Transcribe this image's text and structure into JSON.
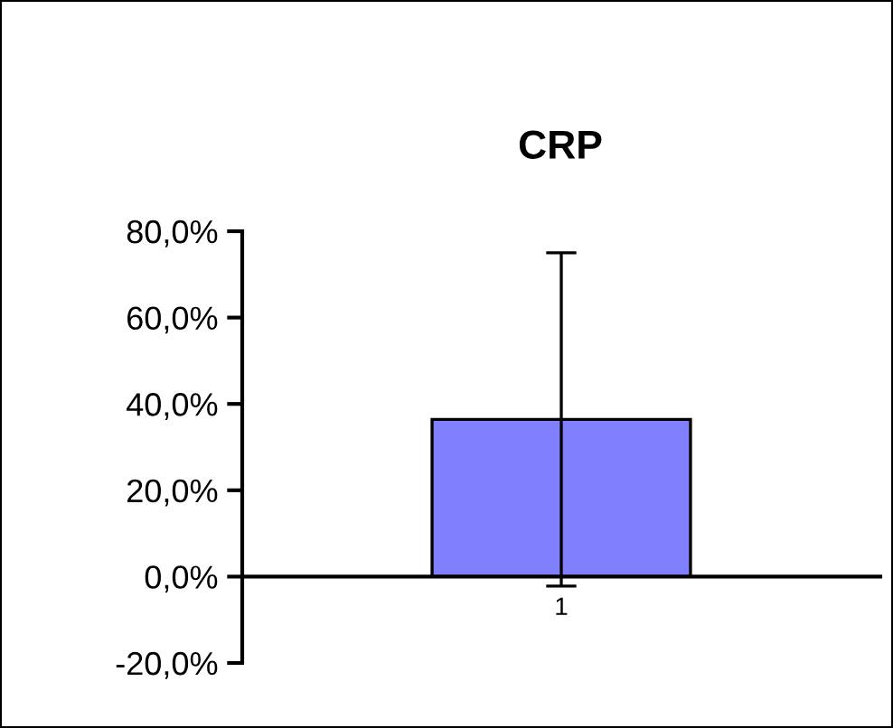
{
  "chart_data": {
    "type": "bar",
    "title": "CRP",
    "categories": [
      "1"
    ],
    "series": [
      {
        "color": "#8080ff",
        "values": [
          36.4
        ],
        "errors": [
          38.6
        ]
      }
    ],
    "ylim": [
      -20,
      80
    ],
    "yticks": [
      {
        "value": -20,
        "label": "-20,0%"
      },
      {
        "value": 0,
        "label": "0,0%"
      },
      {
        "value": 20,
        "label": "20,0%"
      },
      {
        "value": 40,
        "label": "40,0%"
      },
      {
        "value": 60,
        "label": "60,0%"
      },
      {
        "value": 80,
        "label": "80,0%"
      }
    ],
    "grid": false,
    "legend": false
  }
}
